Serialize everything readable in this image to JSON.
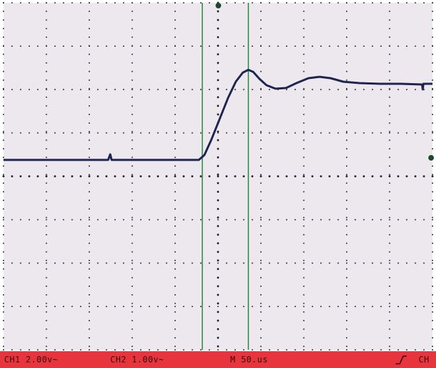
{
  "status_bar": {
    "ch1": "CH1 2.00v~",
    "ch2": "CH2 1.00v~",
    "timebase": "M 50.us",
    "trigger_source": "CH"
  },
  "icons": {
    "trigger_edge": "rising-edge-icon",
    "trigger_level_marker": "trigger-level-marker-icon",
    "trigger_position_marker": "trigger-position-marker-icon"
  },
  "colors": {
    "screen": "#ece8ee",
    "grid_dots": "#2a2a3a",
    "trace": "#1f2350",
    "cursors": "#1c8a3c",
    "status_bar": "#e8343c"
  }
}
